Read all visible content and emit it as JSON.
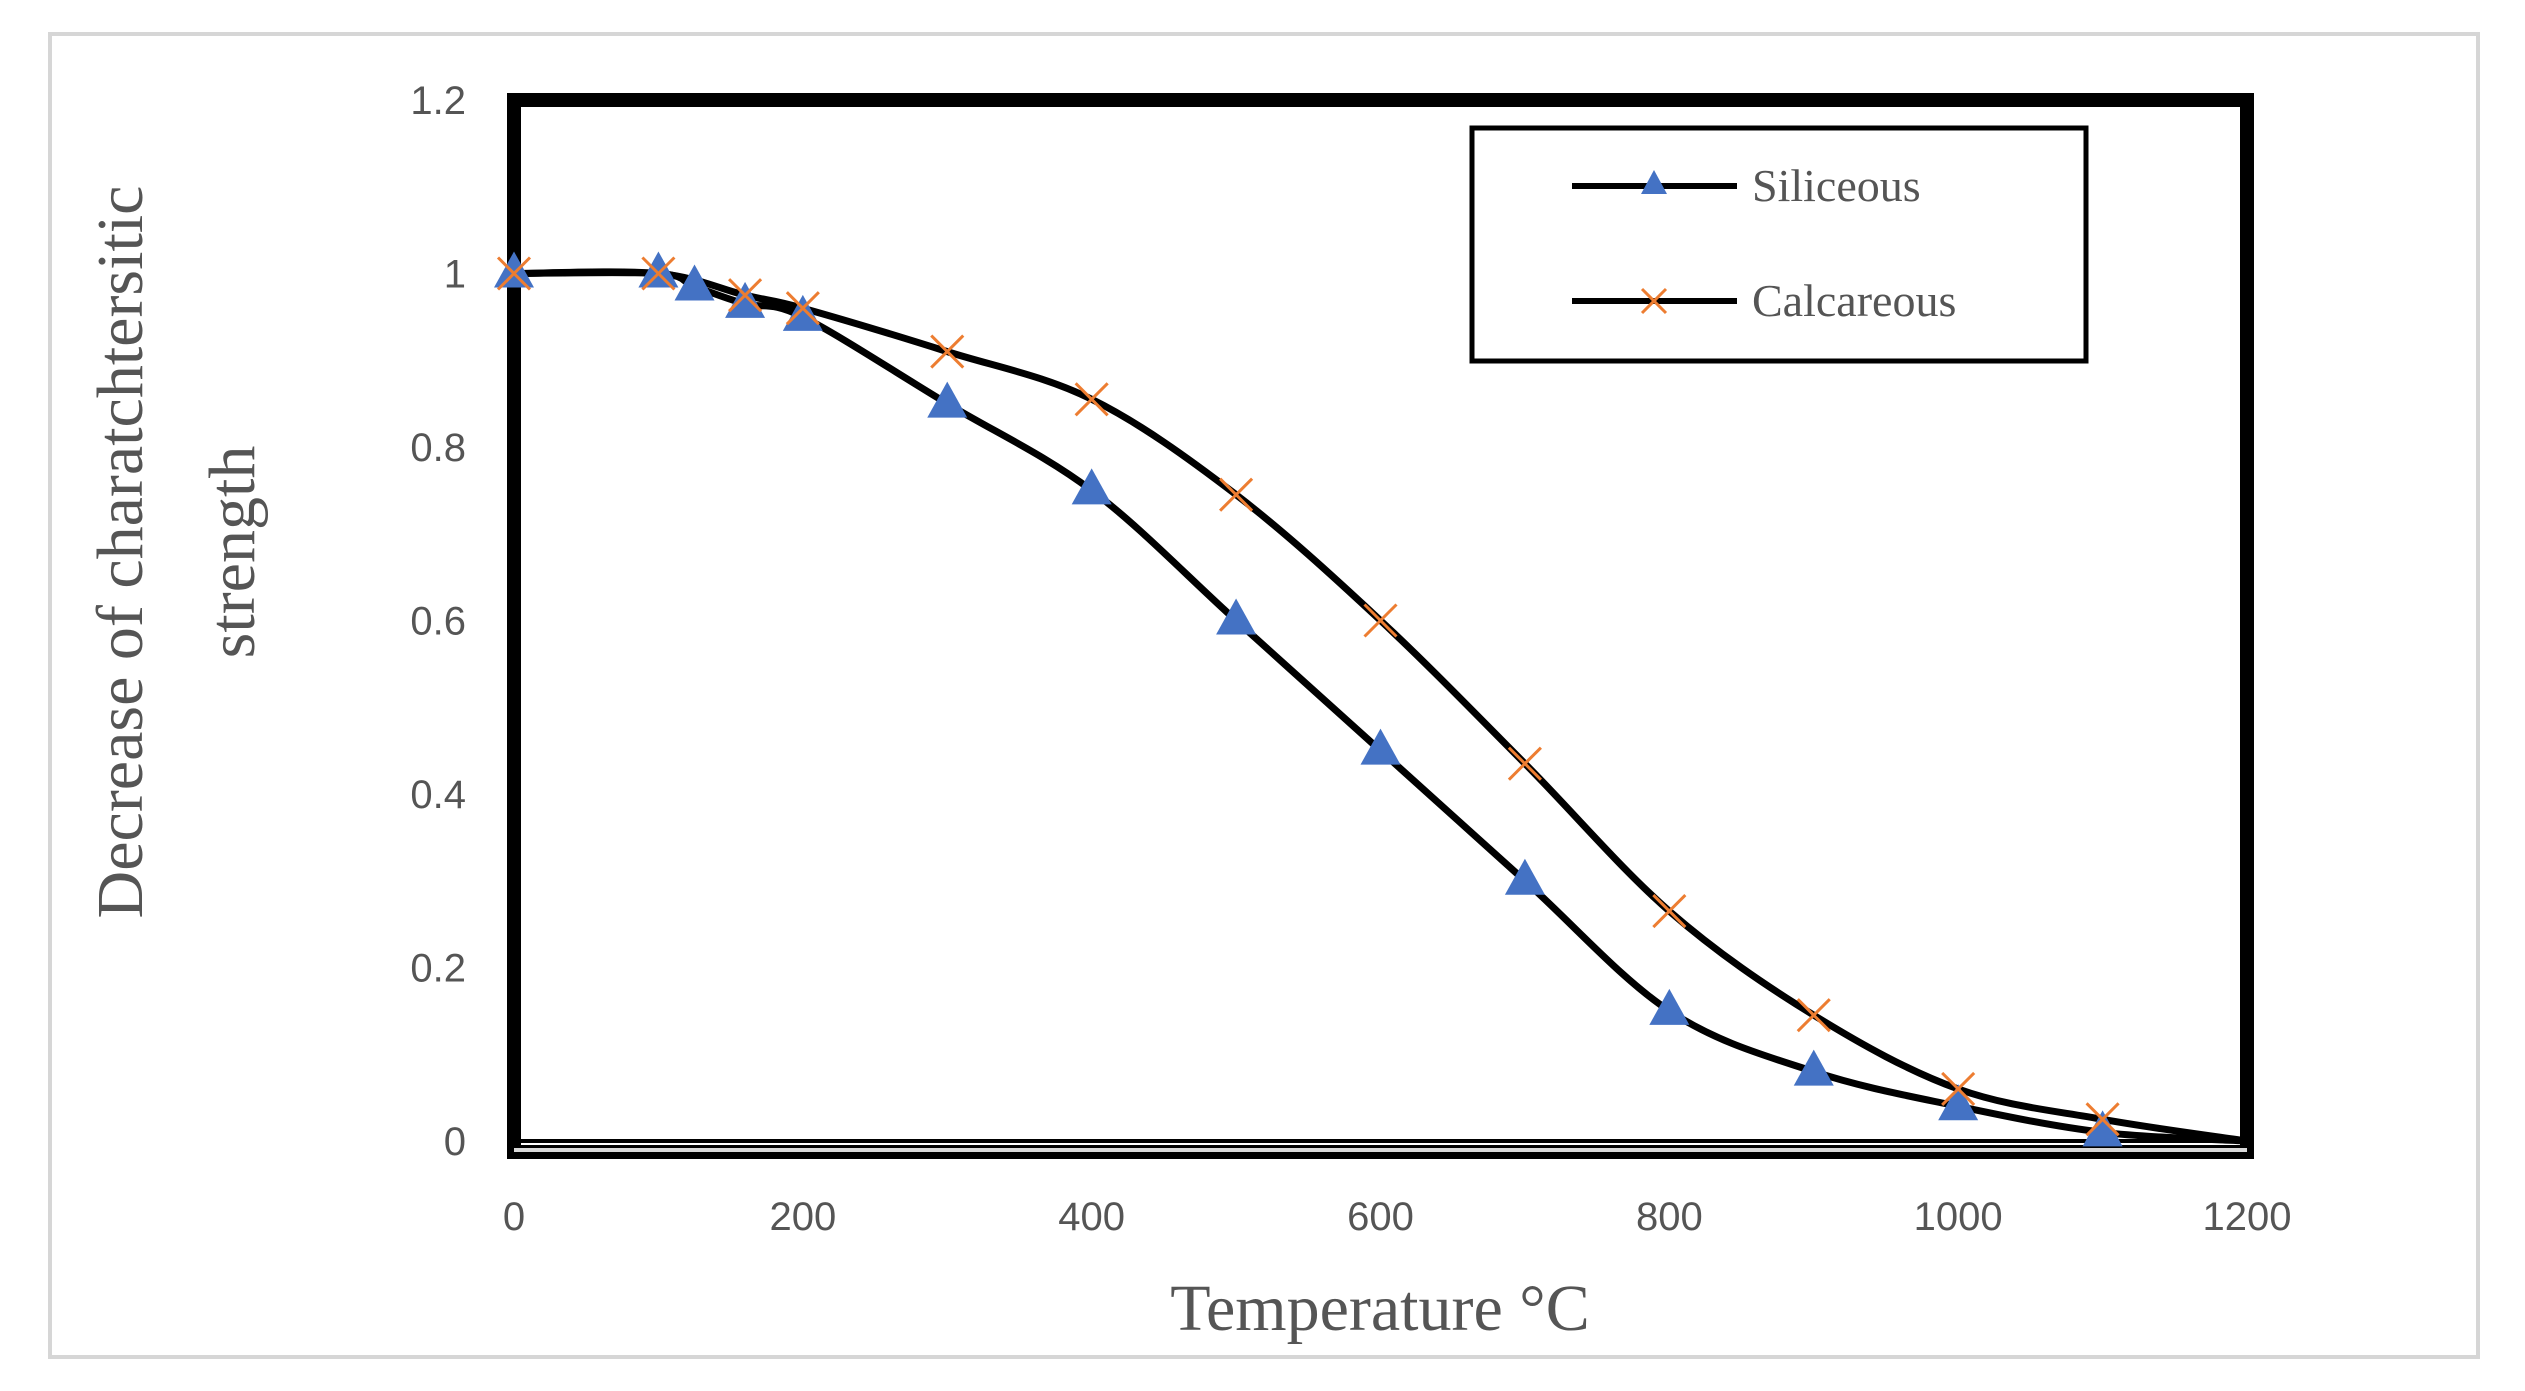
{
  "chart_data": {
    "type": "line",
    "title": "",
    "xlabel": "Temperature °C",
    "ylabel": [
      "Decrease of charatchtersitic",
      "strength"
    ],
    "xlim": [
      0,
      1200
    ],
    "ylim": [
      0,
      1.2
    ],
    "x_ticks": [
      "0",
      "200",
      "400",
      "600",
      "800",
      "1000",
      "1200"
    ],
    "y_ticks": [
      "0",
      "0.2",
      "0.4",
      "0.6",
      "0.8",
      "1",
      "1.2"
    ],
    "x_tick_values": [
      0,
      200,
      400,
      600,
      800,
      1000,
      1200
    ],
    "y_tick_values": [
      0,
      0.2,
      0.4,
      0.6,
      0.8,
      1,
      1.2
    ],
    "grid": false,
    "legend_position": "top-right",
    "series": [
      {
        "name": "Siliceous",
        "marker": "triangle",
        "marker_color": "#4472C4",
        "line_color": "#000000",
        "x": [
          0,
          100,
          125,
          160,
          200,
          300,
          400,
          500,
          600,
          700,
          800,
          900,
          1000,
          1100
        ],
        "y": [
          1.0,
          1.0,
          0.985,
          0.965,
          0.95,
          0.85,
          0.75,
          0.6,
          0.45,
          0.3,
          0.15,
          0.08,
          0.04,
          0.01
        ]
      },
      {
        "name": "Calcareous",
        "marker": "x",
        "marker_color": "#ED7D31",
        "line_color": "#000000",
        "x": [
          0,
          100,
          160,
          200,
          300,
          400,
          500,
          600,
          700,
          800,
          900,
          1000,
          1100
        ],
        "y": [
          1.0,
          1.0,
          0.975,
          0.96,
          0.91,
          0.855,
          0.745,
          0.6,
          0.435,
          0.265,
          0.145,
          0.06,
          0.025
        ]
      }
    ],
    "end_point": {
      "x": 1200,
      "y": 0
    }
  }
}
